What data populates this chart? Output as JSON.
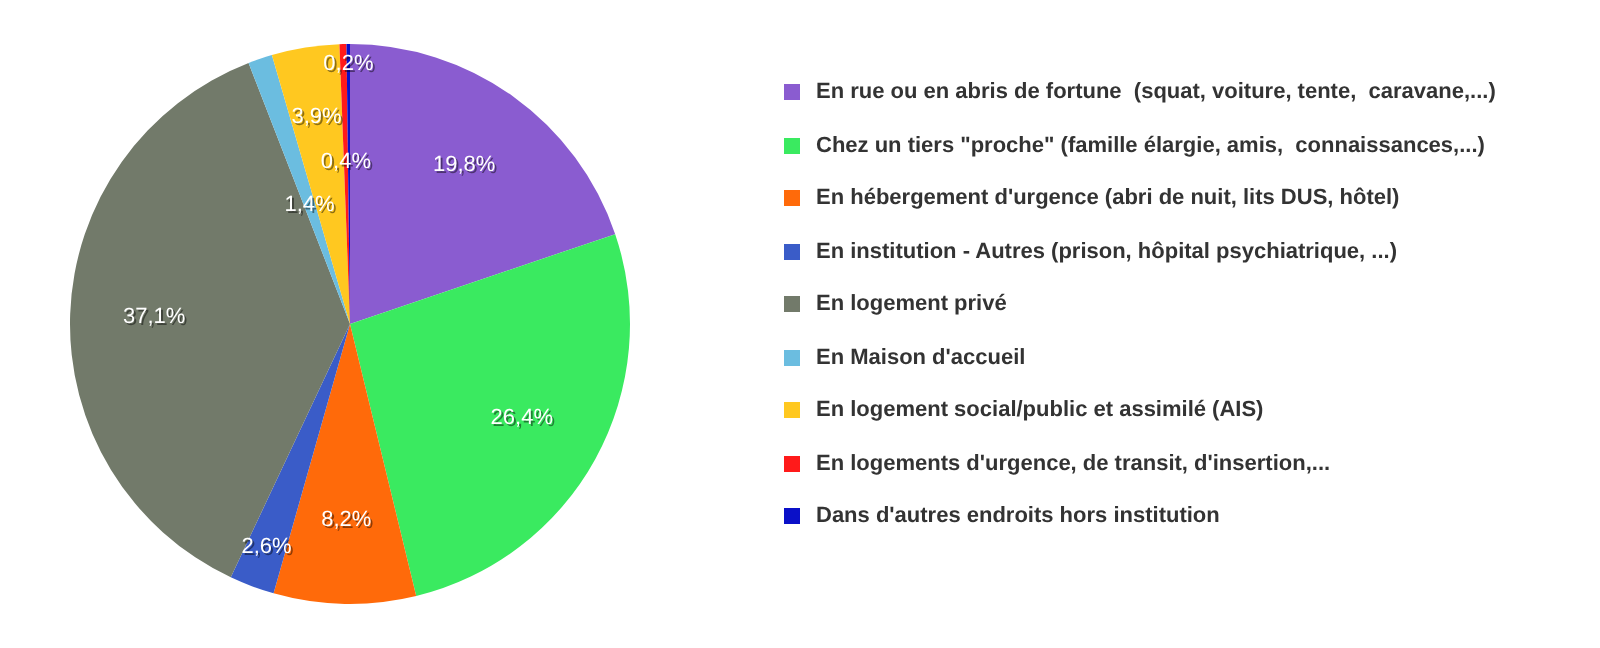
{
  "chart_data": {
    "type": "pie",
    "categories": [
      "En rue ou en abris de fortune  (squat, voiture, tente,  caravane,...)",
      "Chez un tiers \"proche\" (famille élargie, amis,  connaissances,...)",
      "En hébergement d'urgence (abri de nuit, lits DUS, hôtel)",
      "En institution - Autres (prison, hôpital psychiatrique, ...)",
      "En logement privé",
      "En Maison d'accueil",
      "En logement social/public et assimilé (AIS)",
      "En logements d'urgence, de transit, d'insertion,...",
      "Dans d'autres endroits hors institution"
    ],
    "values": [
      19.8,
      26.4,
      8.2,
      2.6,
      37.1,
      1.4,
      3.9,
      0.4,
      0.2
    ],
    "value_labels": [
      "19,8%",
      "26,4%",
      "8,2%",
      "2,6%",
      "37,1%",
      "1,4%",
      "3,9%",
      "0,4%",
      "0,2%"
    ],
    "colors": [
      "#8a5cd0",
      "#3aea60",
      "#ff6a0a",
      "#3a5cc8",
      "#727a6a",
      "#6bbde0",
      "#ffc820",
      "#ff1a1a",
      "#0a10c8"
    ],
    "legend": "right"
  }
}
